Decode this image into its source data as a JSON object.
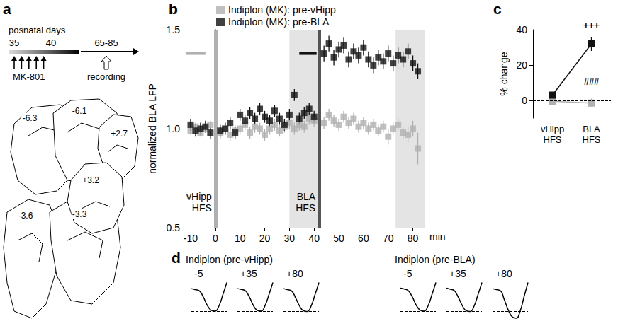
{
  "panel_a": {
    "panel": "a",
    "timeline": {
      "title": "posnatal days",
      "ticks": [
        "35",
        "40",
        "65-85"
      ],
      "events": [
        "MK-801",
        "recording"
      ]
    },
    "injection_days": [
      35,
      36,
      37,
      38,
      39
    ],
    "sections": [
      "-6.3",
      "-6.1",
      "+2.7",
      "+3.2",
      "-3.6",
      "-3.3"
    ]
  },
  "chart_data": [
    {
      "panel": "b",
      "type": "scatter",
      "marker": "square",
      "line_style": "none",
      "grid": false,
      "legend": "top",
      "xlabel": "min",
      "ylabel": "normalized BLA LFP",
      "xlim": [
        -12,
        85
      ],
      "xticks": [
        -10,
        0,
        10,
        20,
        30,
        40,
        50,
        60,
        70,
        80
      ],
      "ylim": [
        0.5,
        1.5
      ],
      "yticks": [
        0.5,
        {
          "value": 1,
          "label": "1.0"
        },
        1.5
      ],
      "x": [
        -10,
        -8,
        -6,
        -4,
        -2,
        2,
        4,
        6,
        8,
        10,
        12,
        14,
        16,
        18,
        20,
        22,
        24,
        26,
        28,
        30,
        32,
        34,
        36,
        38,
        40,
        44,
        46,
        48,
        50,
        52,
        54,
        56,
        58,
        60,
        62,
        64,
        66,
        68,
        70,
        72,
        74,
        76,
        78,
        80,
        82
      ],
      "series": [
        {
          "name": "Indiplon (MK): pre-vHipp",
          "color": "#b0b0b0",
          "values": [
            0.99,
            1.01,
            0.98,
            1.0,
            1.02,
            0.98,
            1.0,
            0.97,
            0.99,
            1.0,
            1.02,
            0.98,
            1.01,
            1.0,
            0.97,
            1.0,
            1.02,
            0.99,
            1.01,
            1.03,
            1.0,
            1.02,
            1.01,
            1.05,
            1.04,
            1.03,
            1.07,
            1.04,
            1.02,
            1.06,
            1.03,
            1.05,
            1.01,
            1.03,
            1.0,
            1.02,
            0.99,
            1.01,
            0.96,
            1.0,
            1.02,
            0.98,
            0.97,
            1.0,
            0.9
          ],
          "errors": [
            0.02,
            0.02,
            0.02,
            0.02,
            0.02,
            0.03,
            0.03,
            0.03,
            0.03,
            0.03,
            0.03,
            0.03,
            0.03,
            0.03,
            0.03,
            0.03,
            0.03,
            0.03,
            0.03,
            0.03,
            0.03,
            0.03,
            0.03,
            0.03,
            0.03,
            0.03,
            0.03,
            0.03,
            0.03,
            0.03,
            0.03,
            0.03,
            0.03,
            0.03,
            0.03,
            0.03,
            0.03,
            0.03,
            0.04,
            0.03,
            0.03,
            0.03,
            0.04,
            0.04,
            0.08
          ],
          "application": {
            "x": [
              -12,
              -4
            ],
            "y": 1.38
          }
        },
        {
          "name": "Indiplon (MK): pre-BLA",
          "color": "#111111",
          "values": [
            1.02,
            0.99,
            1.0,
            1.01,
            0.98,
            0.99,
            1.0,
            1.03,
            0.98,
            1.07,
            1.04,
            1.08,
            1.05,
            1.1,
            1.06,
            1.04,
            1.09,
            1.05,
            1.02,
            1.07,
            1.17,
            1.05,
            1.08,
            1.1,
            1.06,
            1.38,
            1.43,
            1.36,
            1.4,
            1.42,
            1.35,
            1.39,
            1.37,
            1.41,
            1.35,
            1.32,
            1.36,
            1.34,
            1.38,
            1.33,
            1.37,
            1.35,
            1.39,
            1.33,
            1.29
          ],
          "errors": [
            0.03,
            0.03,
            0.03,
            0.03,
            0.03,
            0.03,
            0.03,
            0.03,
            0.03,
            0.03,
            0.03,
            0.03,
            0.03,
            0.03,
            0.03,
            0.03,
            0.03,
            0.03,
            0.03,
            0.03,
            0.03,
            0.03,
            0.03,
            0.03,
            0.03,
            0.04,
            0.04,
            0.04,
            0.04,
            0.04,
            0.04,
            0.04,
            0.04,
            0.04,
            0.04,
            0.04,
            0.04,
            0.04,
            0.04,
            0.04,
            0.04,
            0.04,
            0.04,
            0.04,
            0.04
          ],
          "application": {
            "x": [
              34,
              41
            ],
            "y": 1.38
          }
        }
      ],
      "shaded": [
        [
          30,
          42
        ],
        [
          73,
          85
        ]
      ],
      "stimulations": [
        {
          "x": 0,
          "label": "vHipp HFS",
          "color": "#b0b0b0"
        },
        {
          "x": 42,
          "label": "BLA HFS",
          "color": "#555555"
        }
      ],
      "baseline": 1
    },
    {
      "panel": "c",
      "type": "line",
      "marker": "square",
      "line_style": "solid",
      "grid": false,
      "ylabel": "% change",
      "categories": [
        "vHipp HFS",
        "BLA HFS"
      ],
      "ylim": [
        -10,
        40
      ],
      "yticks": [
        0,
        20,
        40
      ],
      "series": [
        {
          "color": "#b0b0b0",
          "values": [
            -0.5,
            -1.5
          ],
          "errors": [
            1,
            2.5
          ]
        },
        {
          "color": "#111111",
          "values": [
            3,
            32
          ],
          "errors": [
            1.5,
            4
          ]
        }
      ],
      "annotations": [
        {
          "text": "+++",
          "category": "BLA HFS",
          "y": 40
        },
        {
          "text": "###",
          "category": "BLA HFS",
          "y": 8
        }
      ],
      "baseline": 0
    },
    {
      "panel": "d",
      "type": "line",
      "tick_labels": false,
      "color": "#000000",
      "ylim": [
        -1.45,
        0.45
      ],
      "reference": -1.0,
      "groups": [
        {
          "title": "Indiplon (pre-vHipp)",
          "traces": [
            {
              "label": "-5",
              "values": [
                0.1,
                0.05,
                0.0,
                -0.3,
                -0.7,
                -0.95,
                -1.0,
                -0.75,
                -0.2,
                0.4
              ]
            },
            {
              "label": "+35",
              "values": [
                0.1,
                0.06,
                0.0,
                -0.3,
                -0.7,
                -0.96,
                -1.0,
                -0.74,
                -0.2,
                0.4
              ]
            },
            {
              "label": "+80",
              "values": [
                0.1,
                0.05,
                0.0,
                -0.32,
                -0.72,
                -0.97,
                -1.02,
                -0.76,
                -0.2,
                0.4
              ]
            }
          ]
        },
        {
          "title": "Indiplon (pre-BLA)",
          "traces": [
            {
              "label": "-5",
              "values": [
                0.12,
                0.08,
                0.0,
                -0.3,
                -0.7,
                -0.95,
                -1.0,
                -0.75,
                -0.2,
                0.4
              ]
            },
            {
              "label": "+35",
              "values": [
                0.12,
                0.07,
                0.0,
                -0.32,
                -0.72,
                -0.98,
                -1.02,
                -0.76,
                -0.2,
                0.4
              ]
            },
            {
              "label": "+80",
              "values": [
                0.1,
                0.05,
                0.0,
                -0.45,
                -0.95,
                -1.28,
                -1.35,
                -1.0,
                -0.3,
                0.4
              ]
            }
          ]
        }
      ]
    }
  ]
}
